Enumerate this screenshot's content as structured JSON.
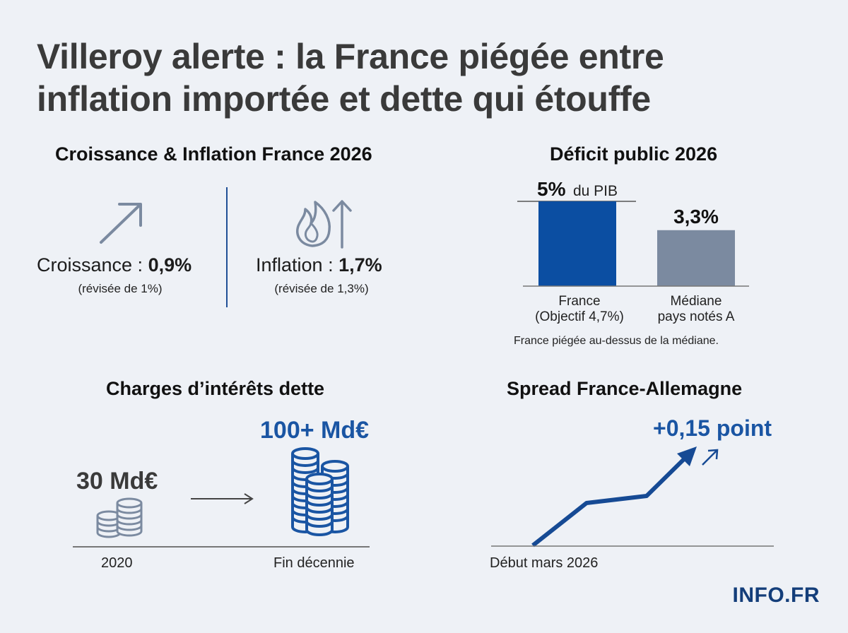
{
  "title": {
    "line1": "Villeroy alerte : la France piégée entre",
    "line2": "inflation importée et dette qui étouffe"
  },
  "growth_inflation": {
    "title": "Croissance & Inflation France 2026",
    "growth": {
      "label": "Croissance : ",
      "value": "0,9%",
      "note": "(révisée de 1%)",
      "icon": "arrow-up-right-icon"
    },
    "inflation": {
      "label": "Inflation : ",
      "value": "1,7%",
      "note": "(révisée de 1,3%)",
      "icon": "flame-arrow-up-icon"
    }
  },
  "chart_data": [
    {
      "type": "bar",
      "title": "Déficit public 2026",
      "categories": [
        "France (Objectif 4,7%)",
        "Médiane pays notés A"
      ],
      "category_lines": [
        [
          "France",
          "(Objectif 4,7%)"
        ],
        [
          "Médiane",
          "pays notés A"
        ]
      ],
      "values": [
        5,
        3.3
      ],
      "value_labels": [
        "5%",
        "3,3%"
      ],
      "value_suffix": "du PIB",
      "ylim": [
        0,
        5
      ],
      "colors": [
        "#0b4ea2",
        "#7b8aa0"
      ],
      "note": "France piégée au-dessus de la médiane."
    },
    {
      "type": "table",
      "title": "Charges d’intérêts dette",
      "categories": [
        "2020",
        "Fin décennie"
      ],
      "values": [
        30,
        100
      ],
      "value_labels": [
        "30 Md€",
        "100+ Md€"
      ],
      "colors": [
        "#3a3a3a",
        "#1a55a3"
      ]
    },
    {
      "type": "line",
      "title": "Spread France-Allemagne",
      "xlabel": "Début mars 2026",
      "annotation": "+0,15 point",
      "colors": [
        "#164a94"
      ]
    }
  ],
  "logo": "INFO.FR"
}
